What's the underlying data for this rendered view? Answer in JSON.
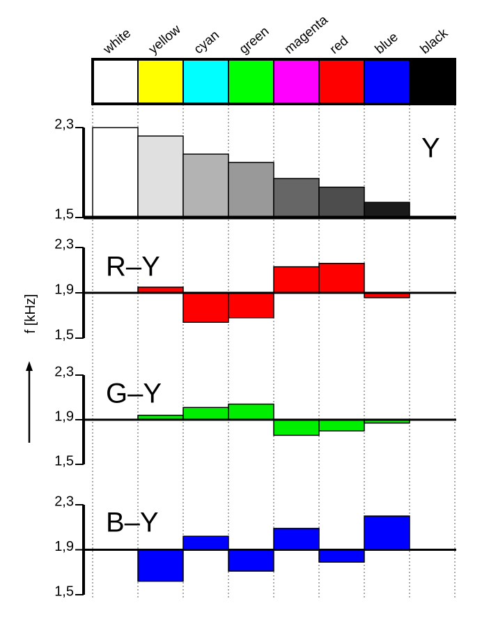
{
  "chart_data": {
    "type": "bar",
    "categories": [
      "white",
      "yellow",
      "cyan",
      "green",
      "magenta",
      "red",
      "blue",
      "black"
    ],
    "category_colors": [
      "#ffffff",
      "#ffff00",
      "#00ffff",
      "#00ff00",
      "#ff00ff",
      "#ff0000",
      "#0000ff",
      "#000000"
    ],
    "ylabel": "f [kHz]",
    "panels": [
      {
        "name": "Y",
        "baseline": 1.5,
        "ylim": [
          1.5,
          2.3
        ],
        "yticks": [
          {
            "value": 1.5,
            "label": "1,5"
          },
          {
            "value": 2.3,
            "label": "2,3"
          }
        ],
        "values": [
          2.3,
          2.225,
          2.064,
          1.99,
          1.847,
          1.77,
          1.635,
          1.5
        ],
        "colors": [
          "#ffffff",
          "#e0e0e0",
          "#b3b3b3",
          "#999999",
          "#666666",
          "#4d4d4d",
          "#1a1a1a",
          "#000000"
        ]
      },
      {
        "name": "R–Y",
        "baseline": 1.9,
        "ylim": [
          1.5,
          2.3
        ],
        "yticks": [
          {
            "value": 1.5,
            "label": "1,5"
          },
          {
            "value": 1.9,
            "label": "1,9"
          },
          {
            "value": 2.3,
            "label": "2,3"
          }
        ],
        "values": [
          1.9,
          1.95,
          1.64,
          1.68,
          2.13,
          2.16,
          1.857,
          1.9
        ],
        "color": "#ff0000"
      },
      {
        "name": "G–Y",
        "baseline": 1.9,
        "ylim": [
          1.5,
          2.3
        ],
        "yticks": [
          {
            "value": 1.5,
            "label": "1,5"
          },
          {
            "value": 1.9,
            "label": "1,9"
          },
          {
            "value": 2.3,
            "label": "2,3"
          }
        ],
        "values": [
          1.9,
          1.94,
          2.01,
          2.04,
          1.76,
          1.8,
          1.87,
          1.9
        ],
        "color": "#00ee00"
      },
      {
        "name": "B–Y",
        "baseline": 1.9,
        "ylim": [
          1.5,
          2.3
        ],
        "yticks": [
          {
            "value": 1.5,
            "label": "1,5"
          },
          {
            "value": 1.9,
            "label": "1,9"
          },
          {
            "value": 2.3,
            "label": "2,3"
          }
        ],
        "values": [
          1.9,
          1.62,
          2.02,
          1.71,
          2.09,
          1.79,
          2.2,
          1.9
        ],
        "color": "#0000ff"
      }
    ]
  }
}
